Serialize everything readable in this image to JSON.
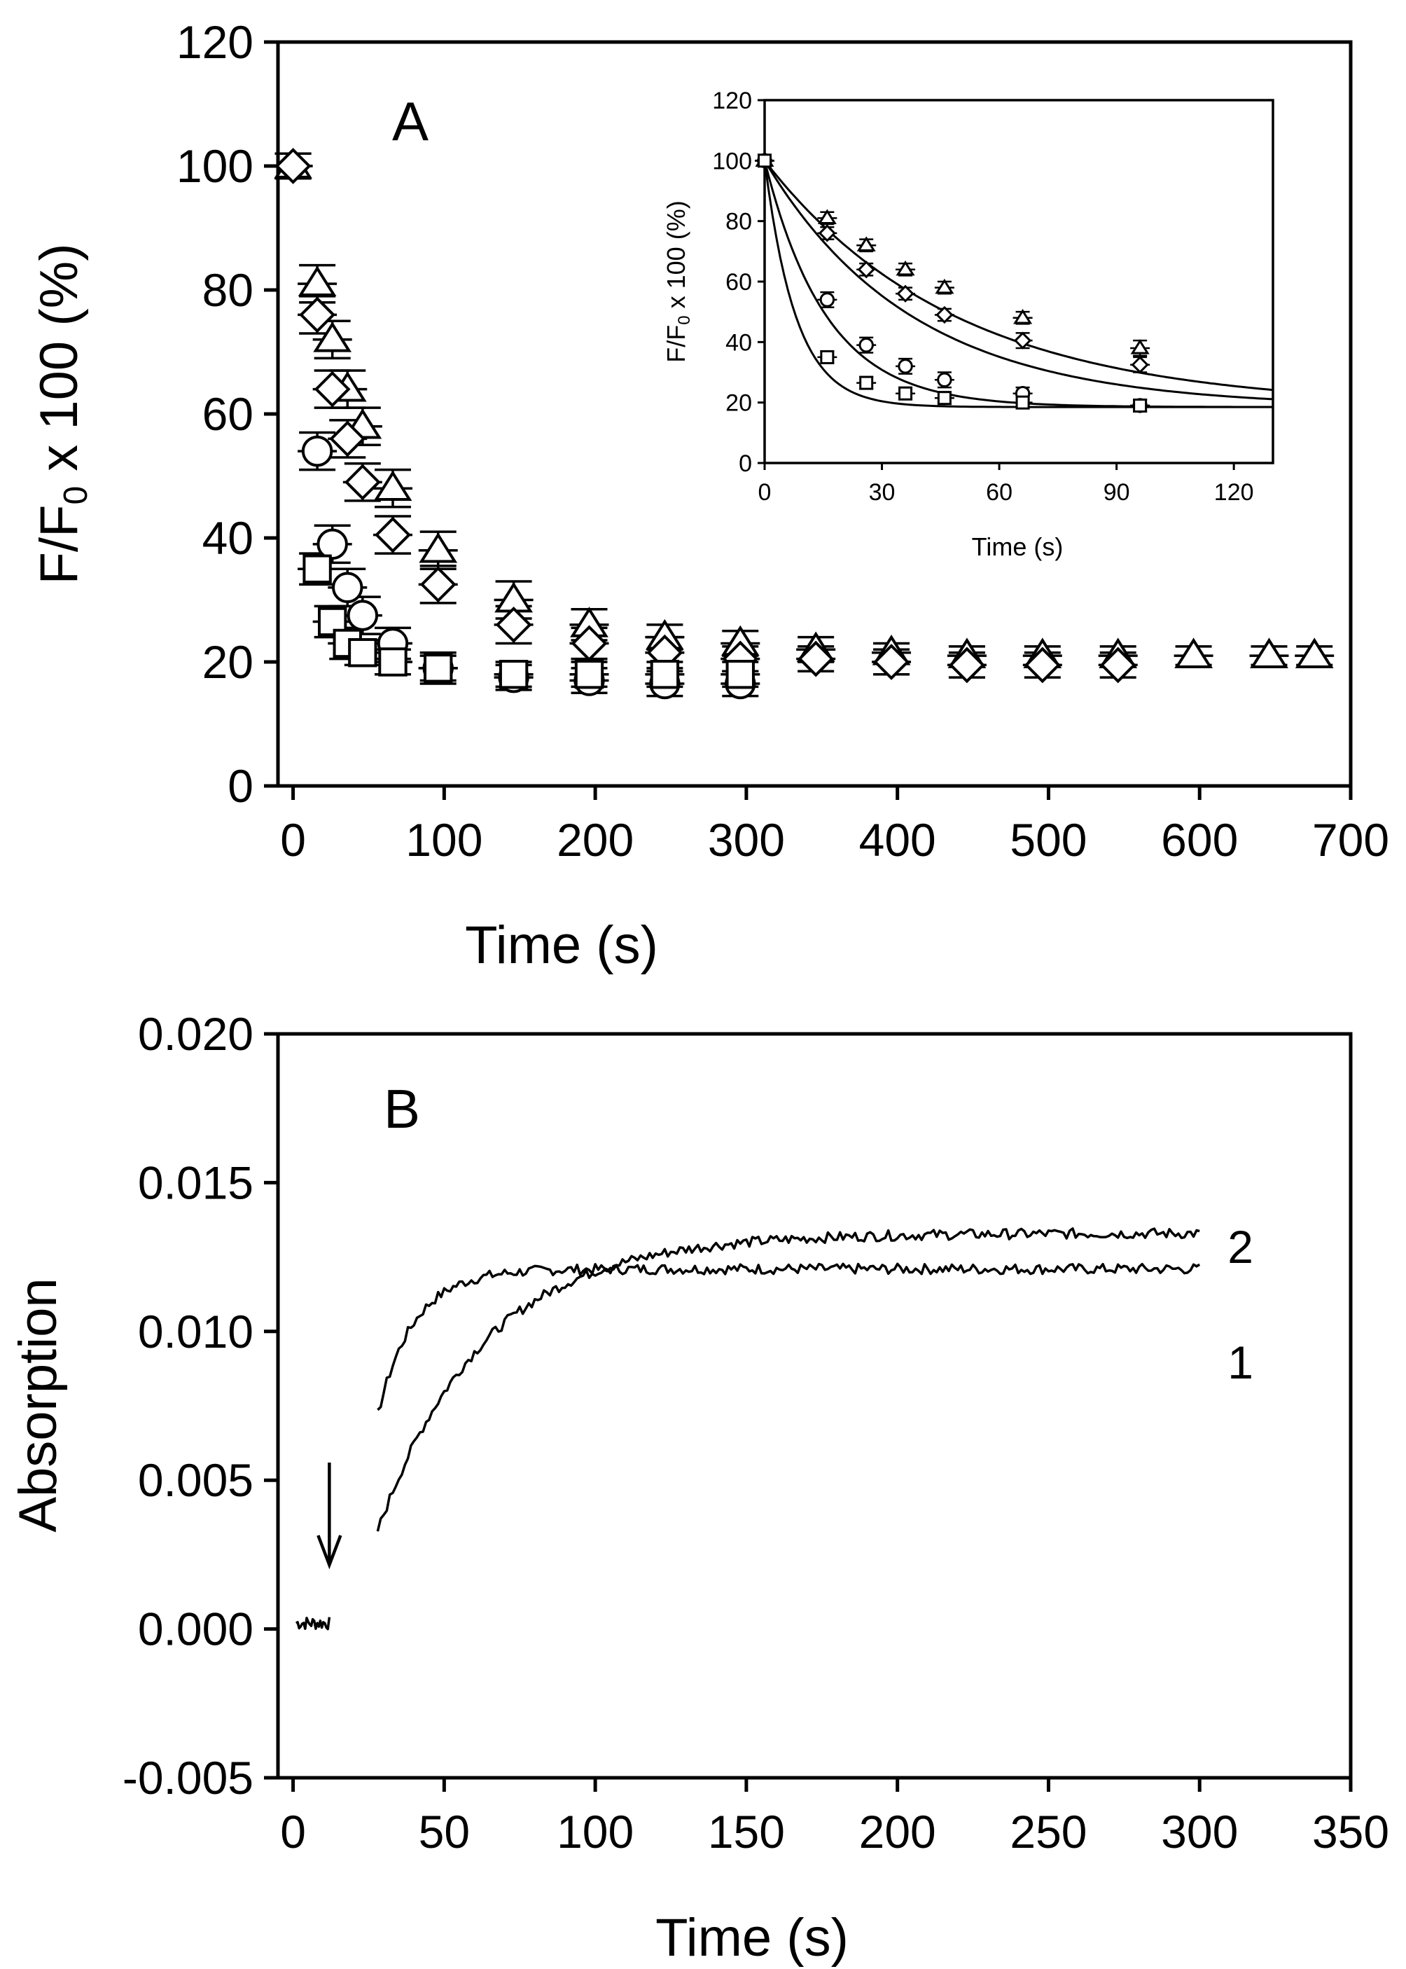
{
  "chart_data": [
    {
      "panel": "A",
      "type": "scatter",
      "xlabel": "Time (s)",
      "ylabel": "F/F0 x 100 (%)",
      "ylabel_main": "F/F",
      "ylabel_sub": "0",
      "ylabel_rest": " x 100 (%)",
      "xlim": [
        -10,
        700
      ],
      "ylim": [
        0,
        120
      ],
      "xticks": [
        0,
        100,
        200,
        300,
        400,
        500,
        600,
        700
      ],
      "yticks": [
        0,
        20,
        40,
        60,
        80,
        100,
        120
      ],
      "series": [
        {
          "name": "triangle",
          "marker": "triangle",
          "x": [
            0,
            16,
            26,
            36,
            46,
            66,
            96,
            146,
            196,
            246,
            296,
            346,
            396,
            446,
            496,
            546,
            596,
            646,
            676
          ],
          "y": [
            100,
            81,
            72,
            64,
            58,
            48,
            38,
            30,
            26,
            24,
            23,
            22,
            21.5,
            21,
            21,
            21,
            21,
            21,
            21
          ],
          "err": [
            2,
            3,
            3,
            3,
            3,
            3,
            3,
            3,
            2.5,
            2,
            2,
            2,
            1.5,
            1.5,
            1.5,
            1.5,
            1.5,
            1.5,
            1.5
          ]
        },
        {
          "name": "diamond",
          "marker": "diamond",
          "x": [
            0,
            16,
            26,
            36,
            46,
            66,
            96,
            146,
            196,
            246,
            296,
            346,
            396,
            446,
            496,
            546
          ],
          "y": [
            100,
            76,
            64,
            56,
            49,
            40.5,
            32.5,
            26,
            23,
            21.5,
            20.5,
            20.5,
            20,
            19.5,
            19.5,
            19.5
          ],
          "err": [
            2,
            3,
            3,
            3,
            3,
            3,
            3,
            3,
            2.5,
            2.5,
            2,
            2,
            2,
            2,
            2,
            2
          ]
        },
        {
          "name": "circle",
          "marker": "circle",
          "x": [
            16,
            26,
            36,
            46,
            66,
            96,
            146,
            196,
            246,
            296
          ],
          "y": [
            54,
            39,
            32,
            27.5,
            23,
            19,
            17.5,
            17,
            16.5,
            16.5
          ],
          "err": [
            3,
            3,
            3,
            3,
            2.5,
            2.5,
            2,
            2,
            2,
            2
          ]
        },
        {
          "name": "square",
          "marker": "square",
          "x": [
            16,
            26,
            36,
            46,
            66,
            96,
            146,
            196,
            246,
            296
          ],
          "y": [
            35,
            26.5,
            23,
            21.5,
            20,
            19,
            18,
            18,
            18,
            18
          ],
          "err": [
            2.5,
            2.5,
            2.5,
            2,
            2,
            2,
            2,
            2,
            2,
            2
          ]
        }
      ],
      "inset": {
        "type": "scatter",
        "xlabel": "Time (s)",
        "ylabel": "F/F0 x 100 (%)",
        "ylabel_main": "F/F",
        "ylabel_sub": "0",
        "ylabel_rest": " x 100 (%)",
        "xlim": [
          0,
          130
        ],
        "ylim": [
          0,
          120
        ],
        "xticks": [
          0,
          30,
          60,
          90,
          120
        ],
        "yticks": [
          0,
          20,
          40,
          60,
          80,
          100,
          120
        ],
        "fit_plateau": 18.5,
        "series": [
          {
            "name": "triangle",
            "marker": "triangle",
            "x": [
              0,
              16,
              26,
              36,
              46,
              66,
              96
            ],
            "y": [
              100,
              81,
              72,
              64,
              58,
              48,
              38
            ],
            "err": [
              1.5,
              2,
              2,
              2,
              2,
              2,
              2.5
            ],
            "fit_rate": 0.0205
          },
          {
            "name": "diamond",
            "marker": "diamond",
            "x": [
              0,
              16,
              26,
              36,
              46,
              66,
              96
            ],
            "y": [
              100,
              76,
              64,
              56,
              49,
              40.5,
              32.5
            ],
            "err": [
              1.5,
              2,
              2,
              2,
              2,
              2.5,
              2.5
            ],
            "fit_rate": 0.0265
          },
          {
            "name": "circle",
            "marker": "circle",
            "x": [
              0,
              16,
              26,
              36,
              46,
              66,
              96
            ],
            "y": [
              100,
              54,
              39,
              32,
              27.5,
              23,
              19
            ],
            "err": [
              1.5,
              2.5,
              2.5,
              2.5,
              2.5,
              2,
              2
            ],
            "fit_rate": 0.063
          },
          {
            "name": "square",
            "marker": "square",
            "x": [
              0,
              16,
              26,
              36,
              46,
              66,
              96
            ],
            "y": [
              100,
              35,
              26.5,
              23,
              21.5,
              20,
              19
            ],
            "err": [
              1.5,
              2,
              2,
              2,
              2,
              2,
              2
            ],
            "fit_rate": 0.125
          }
        ]
      }
    },
    {
      "panel": "B",
      "type": "line",
      "xlabel": "Time (s)",
      "ylabel": "Absorption",
      "xlim": [
        -5,
        350
      ],
      "ylim": [
        -0.005,
        0.02
      ],
      "xticks": [
        0,
        50,
        100,
        150,
        200,
        250,
        300,
        350
      ],
      "yticks": [
        -0.005,
        0.0,
        0.005,
        0.01,
        0.015,
        0.02
      ],
      "ytick_labels": [
        "-0.005",
        "0.000",
        "0.005",
        "0.010",
        "0.015",
        "0.020"
      ],
      "baseline": {
        "x_range": [
          1,
          12
        ],
        "y": 0.0002
      },
      "arrow_at_x": 12,
      "series": [
        {
          "name": "1",
          "label": "1",
          "x_start": 28,
          "x_end": 300,
          "y_start": 0.0072,
          "y_plateau": 0.0121,
          "tau": 12
        },
        {
          "name": "2",
          "label": "2",
          "x_start": 28,
          "x_end": 300,
          "y_start": 0.0033,
          "y_plateau": 0.0133,
          "tau": 35
        }
      ]
    }
  ]
}
